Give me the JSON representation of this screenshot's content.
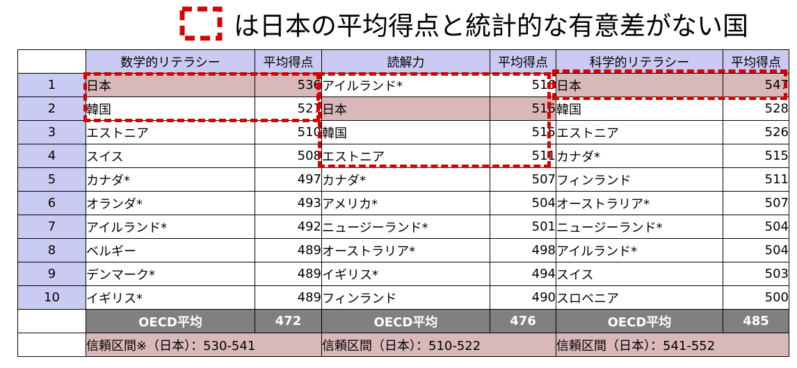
{
  "legend": {
    "text": "は日本の平均得点と統計的な有意差がない国"
  },
  "headers": {
    "math": "数学的リテラシー",
    "reading": "読解力",
    "science": "科学的リテラシー",
    "score": "平均得点"
  },
  "rows": [
    {
      "rank": "1",
      "math": "日本",
      "math_score": "536",
      "reading": "アイルランド*",
      "reading_score": "516",
      "science": "日本",
      "science_score": "547"
    },
    {
      "rank": "2",
      "math": "韓国",
      "math_score": "527",
      "reading": "日本",
      "reading_score": "516",
      "science": "韓国",
      "science_score": "528"
    },
    {
      "rank": "3",
      "math": "エストニア",
      "math_score": "510",
      "reading": "韓国",
      "reading_score": "515",
      "science": "エストニア",
      "science_score": "526"
    },
    {
      "rank": "4",
      "math": "スイス",
      "math_score": "508",
      "reading": "エストニア",
      "reading_score": "511",
      "science": "カナダ*",
      "science_score": "515"
    },
    {
      "rank": "5",
      "math": "カナダ*",
      "math_score": "497",
      "reading": "カナダ*",
      "reading_score": "507",
      "science": "フィンランド",
      "science_score": "511"
    },
    {
      "rank": "6",
      "math": "オランダ*",
      "math_score": "493",
      "reading": "アメリカ*",
      "reading_score": "504",
      "science": "オーストラリア*",
      "science_score": "507"
    },
    {
      "rank": "7",
      "math": "アイルランド*",
      "math_score": "492",
      "reading": "ニュージーランド*",
      "reading_score": "501",
      "science": "ニュージーランド*",
      "science_score": "504"
    },
    {
      "rank": "8",
      "math": "ベルギー",
      "math_score": "489",
      "reading": "オーストラリア*",
      "reading_score": "498",
      "science": "アイルランド*",
      "science_score": "504"
    },
    {
      "rank": "9",
      "math": "デンマーク*",
      "math_score": "489",
      "reading": "イギリス*",
      "reading_score": "494",
      "science": "スイス",
      "science_score": "503"
    },
    {
      "rank": "10",
      "math": "イギリス*",
      "math_score": "489",
      "reading": "フィンランド",
      "reading_score": "490",
      "science": "スロベニア",
      "science_score": "500"
    }
  ],
  "oecd": {
    "label": "OECD平均",
    "math": "472",
    "reading": "476",
    "science": "485"
  },
  "confidence": {
    "math": "信頼区間※（日本）：530-541",
    "reading": "信頼区間（日本）：510-522",
    "science": "信頼区間（日本）：541-552"
  },
  "colors": {
    "header_bg": "#c9cbf2",
    "highlight_bg": "#d9b8b9",
    "oecd_bg": "#808080",
    "dash": "#d80000"
  }
}
